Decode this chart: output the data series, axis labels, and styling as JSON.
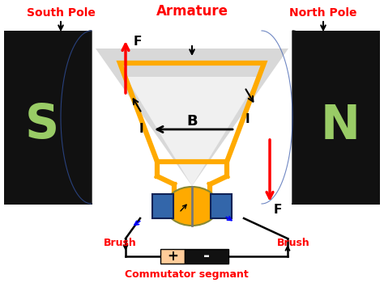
{
  "background_color": "#ffffff",
  "south_pole_label": "South Pole",
  "north_pole_label": "North Pole",
  "armature_label": "Armature",
  "brush_left_label": "Brush",
  "brush_right_label": "Brush",
  "commutator_label": "Commutator segmant",
  "label_color": "#ff0000",
  "magnet_color": "#111111",
  "S_color": "#99cc66",
  "N_color": "#99cc66",
  "armature_color": "#ffaa00",
  "commutator_gold": "#ffaa00",
  "commutator_blue": "#3366aa",
  "battery_pos_color": "#ffcc99",
  "battery_neg_color": "#111111",
  "cone_outer": "#d8d8d8",
  "cone_inner": "#f0f0f0"
}
